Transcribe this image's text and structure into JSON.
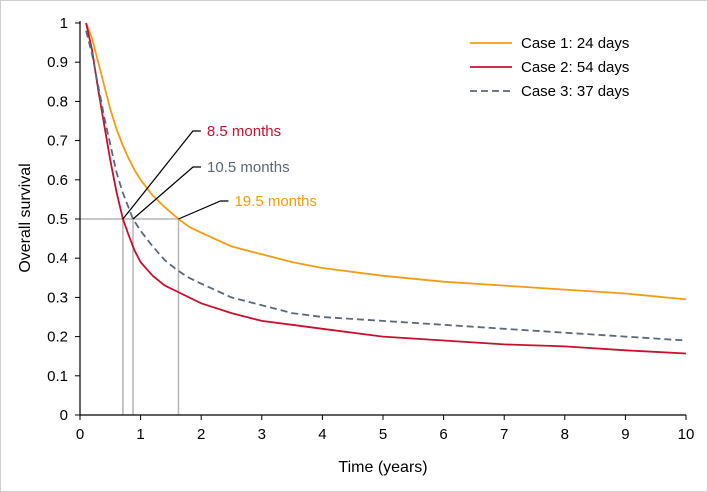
{
  "chart_data": {
    "type": "line",
    "title": "",
    "xlabel": "Time (years)",
    "ylabel": "Overall survival",
    "xlim": [
      0,
      10
    ],
    "ylim": [
      0,
      1
    ],
    "xticks": [
      0,
      1,
      2,
      3,
      4,
      5,
      6,
      7,
      8,
      9,
      10
    ],
    "yticks": [
      0,
      0.1,
      0.2,
      0.3,
      0.4,
      0.5,
      0.6,
      0.7,
      0.8,
      0.9,
      1
    ],
    "grid": false,
    "legend_position": "top-right",
    "series": [
      {
        "name": "Case 1: 24 days",
        "color": "#f39c12",
        "dash": "solid",
        "x": [
          0.1,
          0.2,
          0.3,
          0.4,
          0.5,
          0.6,
          0.7,
          0.8,
          0.9,
          1.0,
          1.2,
          1.4,
          1.625,
          1.8,
          2.0,
          2.5,
          3.0,
          3.5,
          4.0,
          5.0,
          6.0,
          7.0,
          8.0,
          9.0,
          10.0
        ],
        "y": [
          1.0,
          0.96,
          0.9,
          0.84,
          0.78,
          0.73,
          0.69,
          0.655,
          0.625,
          0.6,
          0.56,
          0.53,
          0.5,
          0.48,
          0.465,
          0.43,
          0.41,
          0.39,
          0.375,
          0.355,
          0.34,
          0.33,
          0.32,
          0.31,
          0.295
        ]
      },
      {
        "name": "Case 2: 54 days",
        "color": "#c8102e",
        "dash": "solid",
        "x": [
          0.1,
          0.2,
          0.3,
          0.4,
          0.5,
          0.6,
          0.708,
          0.8,
          0.9,
          1.0,
          1.2,
          1.4,
          1.6,
          1.8,
          2.0,
          2.5,
          3.0,
          3.5,
          4.0,
          5.0,
          6.0,
          7.0,
          8.0,
          9.0,
          10.0
        ],
        "y": [
          1.0,
          0.93,
          0.83,
          0.74,
          0.65,
          0.57,
          0.5,
          0.46,
          0.42,
          0.39,
          0.355,
          0.33,
          0.315,
          0.3,
          0.285,
          0.26,
          0.24,
          0.23,
          0.22,
          0.2,
          0.19,
          0.18,
          0.175,
          0.165,
          0.157
        ]
      },
      {
        "name": "Case 3: 37 days",
        "color": "#5a6878",
        "dash": "dashed",
        "x": [
          0.1,
          0.2,
          0.3,
          0.4,
          0.5,
          0.6,
          0.7,
          0.875,
          1.0,
          1.2,
          1.4,
          1.6,
          1.8,
          2.0,
          2.5,
          3.0,
          3.5,
          4.0,
          5.0,
          6.0,
          7.0,
          8.0,
          9.0,
          10.0
        ],
        "y": [
          0.98,
          0.92,
          0.84,
          0.76,
          0.69,
          0.62,
          0.57,
          0.5,
          0.47,
          0.43,
          0.395,
          0.37,
          0.35,
          0.335,
          0.3,
          0.28,
          0.26,
          0.25,
          0.24,
          0.23,
          0.22,
          0.21,
          0.2,
          0.19
        ]
      }
    ],
    "annotations": [
      {
        "text": "8.5 months",
        "x": 0.708,
        "y": 0.5,
        "color": "#c8102e"
      },
      {
        "text": "10.5 months",
        "x": 0.875,
        "y": 0.5,
        "color": "#5a6878"
      },
      {
        "text": "19.5 months",
        "x": 1.625,
        "y": 0.5,
        "color": "#f39c12"
      }
    ],
    "reference_line_y": 0.5
  }
}
